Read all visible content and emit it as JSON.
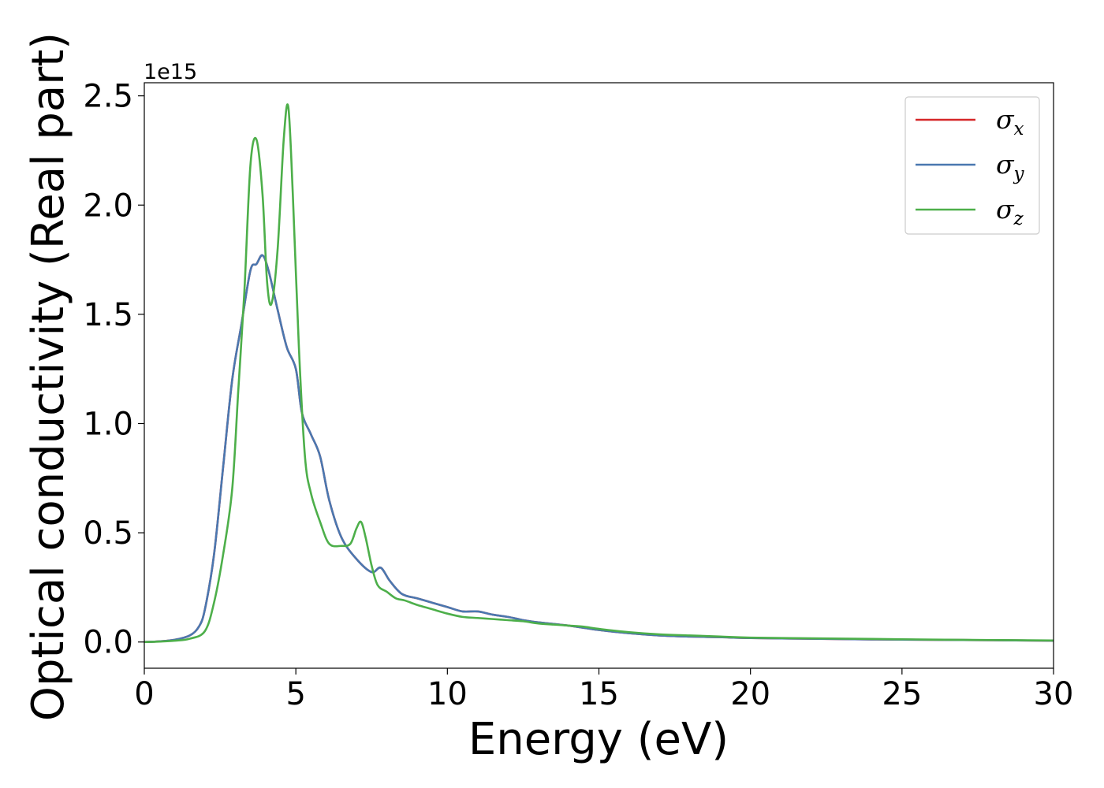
{
  "chart_data": {
    "type": "line",
    "xlabel": "Energy (eV)",
    "ylabel": "Optical conductivity (Real part)",
    "y_offset_label": "1e15",
    "xlim": [
      0,
      30
    ],
    "ylim": [
      -0.12,
      2.56
    ],
    "x_ticks": [
      0,
      5,
      10,
      15,
      20,
      25,
      30
    ],
    "x_tick_labels": [
      "0",
      "5",
      "10",
      "15",
      "20",
      "25",
      "30"
    ],
    "y_ticks": [
      0.0,
      0.5,
      1.0,
      1.5,
      2.0,
      2.5
    ],
    "y_tick_labels": [
      "0.0",
      "0.5",
      "1.0",
      "1.5",
      "2.0",
      "2.5"
    ],
    "grid": false,
    "legend_position": "top-right",
    "series": [
      {
        "name": "σx",
        "legend_base": "σ",
        "legend_sub": "x",
        "color": "#d62728",
        "x": [
          0,
          0.5,
          1.0,
          1.5,
          1.8,
          2.0,
          2.3,
          2.6,
          2.9,
          3.2,
          3.5,
          3.7,
          3.9,
          4.1,
          4.4,
          4.7,
          5.0,
          5.2,
          5.5,
          5.8,
          6.1,
          6.5,
          7.0,
          7.5,
          7.8,
          8.1,
          8.5,
          9.0,
          9.5,
          10.0,
          10.5,
          11.0,
          11.5,
          12.0,
          12.5,
          13.0,
          14.0,
          15.0,
          16.0,
          17.0,
          18.0,
          19.0,
          20.0,
          22.0,
          24.0,
          26.0,
          28.0,
          30.0
        ],
        "y": [
          0.0,
          0.003,
          0.01,
          0.03,
          0.07,
          0.15,
          0.4,
          0.8,
          1.2,
          1.45,
          1.7,
          1.73,
          1.77,
          1.7,
          1.52,
          1.35,
          1.25,
          1.05,
          0.95,
          0.85,
          0.65,
          0.48,
          0.38,
          0.32,
          0.34,
          0.28,
          0.22,
          0.2,
          0.18,
          0.16,
          0.14,
          0.14,
          0.125,
          0.115,
          0.1,
          0.09,
          0.075,
          0.055,
          0.04,
          0.03,
          0.025,
          0.022,
          0.018,
          0.015,
          0.012,
          0.01,
          0.008,
          0.006
        ]
      },
      {
        "name": "σy",
        "legend_base": "σ",
        "legend_sub": "y",
        "color": "#4a78b0",
        "x": [
          0,
          0.5,
          1.0,
          1.5,
          1.8,
          2.0,
          2.3,
          2.6,
          2.9,
          3.2,
          3.5,
          3.7,
          3.9,
          4.1,
          4.4,
          4.7,
          5.0,
          5.2,
          5.5,
          5.8,
          6.1,
          6.5,
          7.0,
          7.5,
          7.8,
          8.1,
          8.5,
          9.0,
          9.5,
          10.0,
          10.5,
          11.0,
          11.5,
          12.0,
          12.5,
          13.0,
          14.0,
          15.0,
          16.0,
          17.0,
          18.0,
          19.0,
          20.0,
          22.0,
          24.0,
          26.0,
          28.0,
          30.0
        ],
        "y": [
          0.0,
          0.003,
          0.01,
          0.03,
          0.07,
          0.15,
          0.4,
          0.8,
          1.2,
          1.45,
          1.7,
          1.73,
          1.77,
          1.7,
          1.52,
          1.35,
          1.25,
          1.05,
          0.95,
          0.85,
          0.65,
          0.48,
          0.38,
          0.32,
          0.34,
          0.28,
          0.22,
          0.2,
          0.18,
          0.16,
          0.14,
          0.14,
          0.125,
          0.115,
          0.1,
          0.09,
          0.075,
          0.055,
          0.04,
          0.03,
          0.025,
          0.022,
          0.018,
          0.015,
          0.012,
          0.01,
          0.008,
          0.006
        ]
      },
      {
        "name": "σz",
        "legend_base": "σ",
        "legend_sub": "z",
        "color": "#4daf4a",
        "x": [
          0,
          0.5,
          1.0,
          1.5,
          2.0,
          2.3,
          2.6,
          2.9,
          3.1,
          3.3,
          3.5,
          3.7,
          3.9,
          4.05,
          4.2,
          4.4,
          4.6,
          4.75,
          4.9,
          5.1,
          5.3,
          5.5,
          5.8,
          6.1,
          6.5,
          6.8,
          7.0,
          7.15,
          7.3,
          7.5,
          7.7,
          8.0,
          8.3,
          8.6,
          9.0,
          9.5,
          10.0,
          10.5,
          11.0,
          11.5,
          12.0,
          12.5,
          13.0,
          13.5,
          14.0,
          14.5,
          15.0,
          16.0,
          17.0,
          18.0,
          19.0,
          20.0,
          22.0,
          24.0,
          26.0,
          28.0,
          30.0
        ],
        "y": [
          0.0,
          0.002,
          0.006,
          0.015,
          0.05,
          0.18,
          0.4,
          0.7,
          1.15,
          1.6,
          2.18,
          2.3,
          2.05,
          1.65,
          1.55,
          1.8,
          2.3,
          2.45,
          2.05,
          1.35,
          0.85,
          0.68,
          0.55,
          0.45,
          0.44,
          0.45,
          0.52,
          0.55,
          0.48,
          0.35,
          0.26,
          0.23,
          0.2,
          0.19,
          0.17,
          0.15,
          0.13,
          0.115,
          0.11,
          0.105,
          0.1,
          0.095,
          0.085,
          0.08,
          0.075,
          0.07,
          0.06,
          0.045,
          0.035,
          0.03,
          0.025,
          0.02,
          0.017,
          0.014,
          0.011,
          0.009,
          0.007
        ]
      }
    ]
  }
}
